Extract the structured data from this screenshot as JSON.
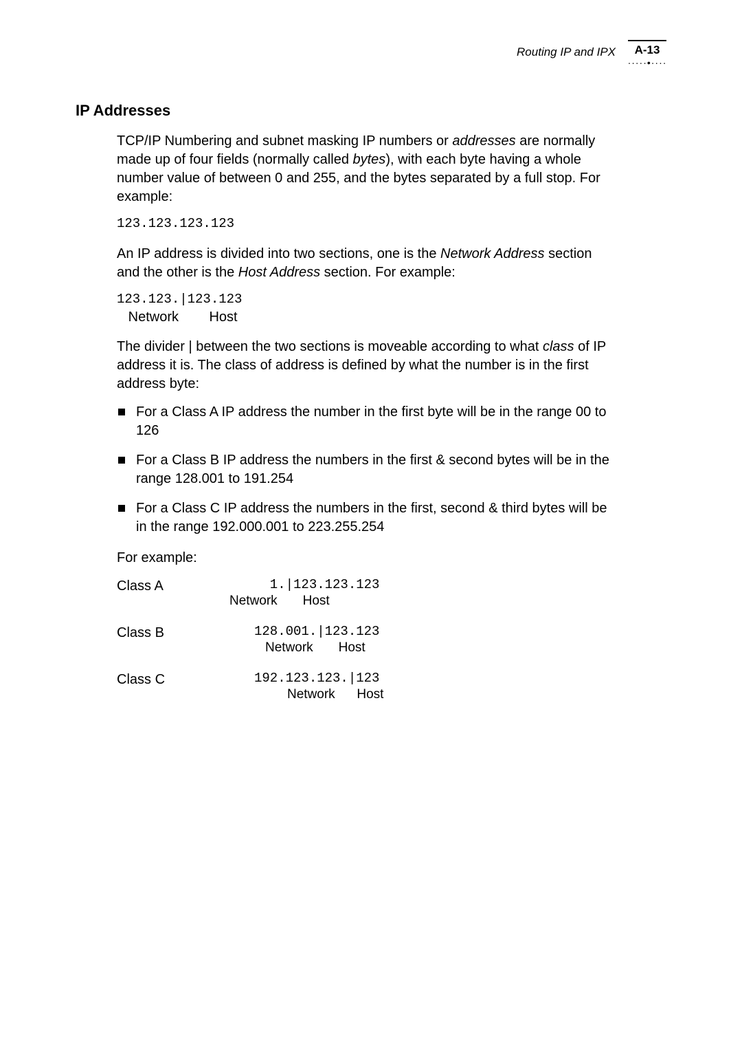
{
  "running_head": {
    "title": "Routing IP and IPX",
    "page_number": "A-13",
    "dots": "·····•····"
  },
  "heading": "IP Addresses",
  "para1_pre": "TCP/IP Numbering and subnet masking IP numbers or ",
  "para1_em1": "addresses",
  "para1_mid": " are normally made up of four fields (normally called ",
  "para1_em2": "bytes",
  "para1_post": "), with each byte having a whole number value of between 0 and 255, and the bytes separated by a full stop. For example:",
  "code1": "123.123.123.123",
  "para2_pre": "An IP address is divided into two sections, one is the ",
  "para2_em1": "Network Address",
  "para2_mid": " section and the other is the ",
  "para2_em2": "Host Address",
  "para2_post": " section. For example:",
  "code2": "123.123.|123.123",
  "code2_labels": "   Network        Host",
  "para3_pre": "The divider | between the two sections is moveable according to what ",
  "para3_em": "class",
  "para3_post": " of IP address it is. The class of address is defined by what the number is in the first address byte:",
  "bullets": [
    "For a Class A IP address the number in the first byte will be in the range 00 to 126",
    "For a Class B IP address the numbers in the first & second bytes will be in the range 128.001 to 191.254",
    "For a Class C IP address the numbers in the first, second & third bytes will be in the range 192.000.001 to 223.255.254"
  ],
  "example_intro": "For example:",
  "examples": {
    "a": {
      "label": "Class A",
      "code": "  1.|123.123.123",
      "sub": "Network       Host"
    },
    "b": {
      "label": "Class B",
      "code": "128.001.|123.123",
      "sub": "Network       Host"
    },
    "c": {
      "label": "Class C",
      "code": "192.123.123.|123",
      "sub": "Network      Host"
    }
  }
}
